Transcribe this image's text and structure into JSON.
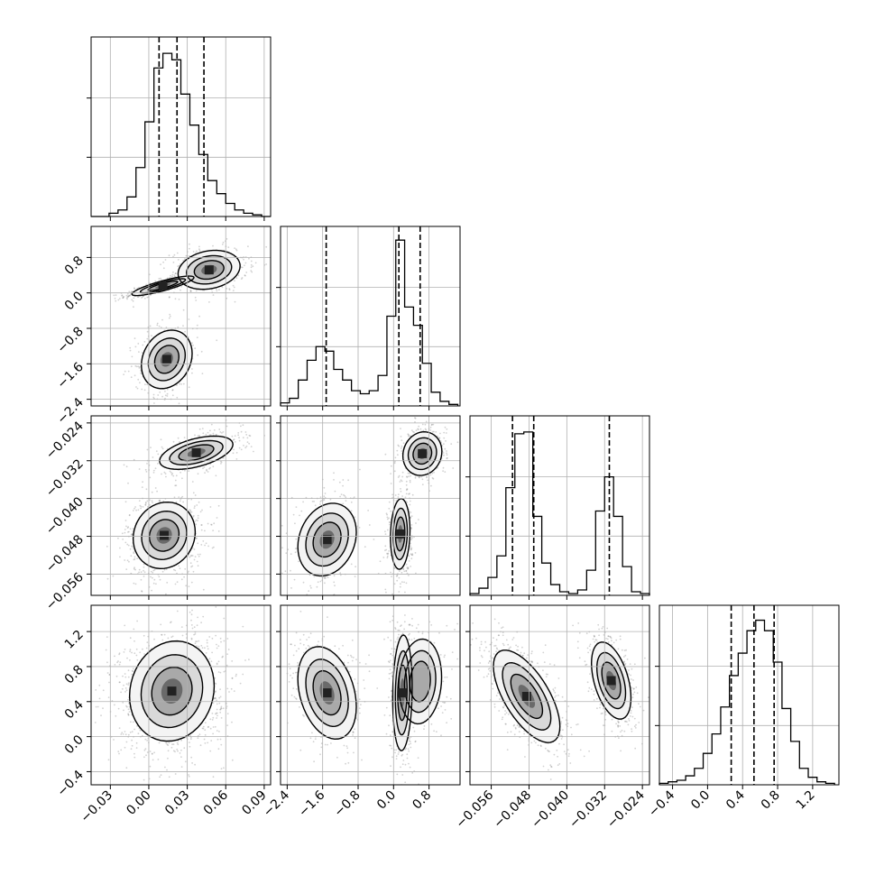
{
  "style": {
    "grid_color": "#b0b0b0",
    "line_color": "#000000",
    "point_color": "#7f7f7f",
    "fill_colors": [
      "#f4f4f4",
      "#d9d9d9",
      "#a9a9a9",
      "#6a6a6a"
    ]
  },
  "chart_data": {
    "type": "corner",
    "parameters": 4,
    "grid": true,
    "axes": [
      {
        "range": [
          -0.045,
          0.095
        ],
        "ticks": [
          -0.03,
          0.0,
          0.03,
          0.06,
          0.09
        ],
        "tick_labels": [
          "−0.03",
          "0.00",
          "0.03",
          "0.06",
          "0.09"
        ],
        "quantiles": [
          0.008,
          0.022,
          0.043
        ]
      },
      {
        "range": [
          -2.55,
          1.5
        ],
        "ticks": [
          -2.4,
          -1.6,
          -0.8,
          0.0,
          0.8
        ],
        "tick_labels": [
          "−2.4",
          "−1.6",
          "−0.8",
          "0.0",
          "0.8"
        ],
        "quantiles": [
          -1.52,
          0.12,
          0.6
        ]
      },
      {
        "range": [
          -0.0605,
          -0.0225
        ],
        "ticks": [
          -0.056,
          -0.048,
          -0.04,
          -0.032,
          -0.024
        ],
        "tick_labels": [
          "−0.056",
          "−0.048",
          "−0.040",
          "−0.032",
          "−0.024"
        ],
        "quantiles": [
          -0.0515,
          -0.047,
          -0.031
        ]
      },
      {
        "range": [
          -0.55,
          1.5
        ],
        "ticks": [
          -0.4,
          0.0,
          0.4,
          0.8,
          1.2
        ],
        "tick_labels": [
          "−0.4",
          "0.0",
          "0.4",
          "0.8",
          "1.2"
        ],
        "quantiles": [
          0.27,
          0.53,
          0.76
        ]
      }
    ],
    "histograms": [
      {
        "param": 0,
        "edges": [
          -0.045,
          -0.038,
          -0.031,
          -0.024,
          -0.017,
          -0.01,
          -0.003,
          0.004,
          0.011,
          0.018,
          0.025,
          0.032,
          0.039,
          0.046,
          0.053,
          0.06,
          0.067,
          0.074,
          0.081,
          0.088,
          0.095
        ],
        "counts": [
          0,
          0,
          2,
          4,
          12,
          30,
          58,
          91,
          100,
          96,
          75,
          56,
          38,
          22,
          14,
          8,
          4,
          2,
          1,
          0
        ],
        "ymax": 110
      },
      {
        "param": 1,
        "edges": [
          -2.55,
          -2.35,
          -2.15,
          -1.95,
          -1.75,
          -1.55,
          -1.35,
          -1.15,
          -0.95,
          -0.75,
          -0.55,
          -0.35,
          -0.15,
          0.05,
          0.25,
          0.45,
          0.65,
          0.85,
          1.05,
          1.25,
          1.45
        ],
        "counts": [
          2,
          5,
          17,
          30,
          39,
          36,
          24,
          17,
          10,
          8,
          10,
          20,
          59,
          109,
          65,
          53,
          28,
          9,
          3,
          1
        ],
        "ymax": 118
      },
      {
        "param": 2,
        "edges": [
          -0.0605,
          -0.0586,
          -0.0567,
          -0.0548,
          -0.0529,
          -0.051,
          -0.0491,
          -0.0472,
          -0.0453,
          -0.0434,
          -0.0415,
          -0.0396,
          -0.0377,
          -0.0358,
          -0.0339,
          -0.032,
          -0.0301,
          -0.0282,
          -0.0263,
          -0.0244,
          -0.0225
        ],
        "counts": [
          1,
          4,
          10,
          22,
          60,
          90,
          91,
          44,
          18,
          6,
          2,
          1,
          3,
          14,
          47,
          66,
          44,
          16,
          2,
          1
        ],
        "ymax": 100
      },
      {
        "param": 3,
        "edges": [
          -0.55,
          -0.45,
          -0.35,
          -0.25,
          -0.15,
          -0.05,
          0.05,
          0.15,
          0.25,
          0.35,
          0.45,
          0.55,
          0.65,
          0.75,
          0.85,
          0.95,
          1.05,
          1.15,
          1.25,
          1.35,
          1.45
        ],
        "counts": [
          1,
          2,
          3,
          6,
          11,
          21,
          34,
          52,
          73,
          88,
          103,
          110,
          103,
          82,
          51,
          29,
          11,
          5,
          2,
          1
        ],
        "ymax": 120
      }
    ],
    "pairs": [
      {
        "x": 0,
        "y": 1,
        "modes": [
          {
            "cx": 0.011,
            "cy": 0.16,
            "sx": 0.011,
            "sy": 0.1,
            "r": 0.85,
            "w": 0.35
          },
          {
            "cx": 0.047,
            "cy": 0.52,
            "sx": 0.011,
            "sy": 0.2,
            "r": 0.2,
            "w": 0.35
          },
          {
            "cx": 0.014,
            "cy": -1.5,
            "sx": 0.009,
            "sy": 0.3,
            "r": 0.2,
            "w": 0.3
          }
        ]
      },
      {
        "x": 0,
        "y": 2,
        "modes": [
          {
            "cx": 0.012,
            "cy": -0.0478,
            "sx": 0.011,
            "sy": 0.0032,
            "r": 0.1,
            "w": 0.6
          },
          {
            "cx": 0.037,
            "cy": -0.0303,
            "sx": 0.013,
            "sy": 0.0016,
            "r": 0.5,
            "w": 0.4
          }
        ]
      },
      {
        "x": 1,
        "y": 2,
        "modes": [
          {
            "cx": -1.5,
            "cy": -0.0487,
            "sx": 0.3,
            "sy": 0.0035,
            "r": 0.2,
            "w": 0.3
          },
          {
            "cx": 0.15,
            "cy": -0.0475,
            "sx": 0.1,
            "sy": 0.0034,
            "r": 0.1,
            "w": 0.35
          },
          {
            "cx": 0.65,
            "cy": -0.0305,
            "sx": 0.2,
            "sy": 0.0021,
            "r": 0.1,
            "w": 0.35
          }
        ]
      },
      {
        "x": 0,
        "y": 3,
        "modes": [
          {
            "cx": 0.018,
            "cy": 0.52,
            "sx": 0.015,
            "sy": 0.26,
            "r": 0.1,
            "w": 1.0
          }
        ]
      },
      {
        "x": 1,
        "y": 3,
        "modes": [
          {
            "cx": -1.5,
            "cy": 0.5,
            "sx": 0.3,
            "sy": 0.24,
            "r": -0.3,
            "w": 0.35
          },
          {
            "cx": 0.2,
            "cy": 0.5,
            "sx": 0.1,
            "sy": 0.3,
            "r": 0.1,
            "w": 0.4
          },
          {
            "cx": 0.6,
            "cy": 0.63,
            "sx": 0.22,
            "sy": 0.22,
            "r": 0.1,
            "w": 0.25
          }
        ]
      },
      {
        "x": 2,
        "y": 3,
        "modes": [
          {
            "cx": -0.0485,
            "cy": 0.46,
            "sx": 0.0032,
            "sy": 0.24,
            "r": -0.65,
            "w": 0.6
          },
          {
            "cx": -0.0306,
            "cy": 0.64,
            "sx": 0.0019,
            "sy": 0.2,
            "r": -0.45,
            "w": 0.4
          }
        ]
      }
    ]
  }
}
